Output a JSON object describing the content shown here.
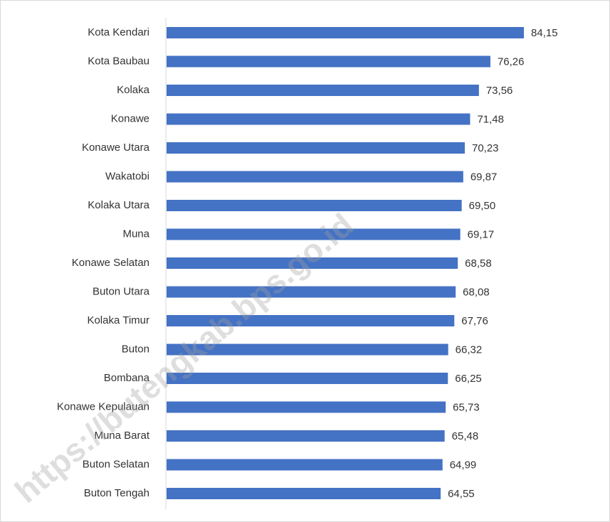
{
  "chart_data": {
    "type": "bar",
    "orientation": "horizontal",
    "categories": [
      "Kota Kendari",
      "Kota Baubau",
      "Kolaka",
      "Konawe",
      "Konawe Utara",
      "Wakatobi",
      "Kolaka Utara",
      "Muna",
      "Konawe Selatan",
      "Buton Utara",
      "Kolaka Timur",
      "Buton",
      "Bombana",
      "Konawe Kepulauan",
      "Muna Barat",
      "Buton Selatan",
      "Buton Tengah"
    ],
    "values": [
      84.15,
      76.26,
      73.56,
      71.48,
      70.23,
      69.87,
      69.5,
      69.17,
      68.58,
      68.08,
      67.76,
      66.32,
      66.25,
      65.73,
      65.48,
      64.99,
      64.55
    ],
    "value_labels": [
      "84,15",
      "76,26",
      "73,56",
      "71,48",
      "70,23",
      "69,87",
      "69,50",
      "69,17",
      "68,58",
      "68,08",
      "67,76",
      "66,32",
      "66,25",
      "65,73",
      "65,48",
      "64,99",
      "64,55"
    ],
    "color": "#4472c4",
    "annotation": "https://butengkab.bps.go.id"
  }
}
